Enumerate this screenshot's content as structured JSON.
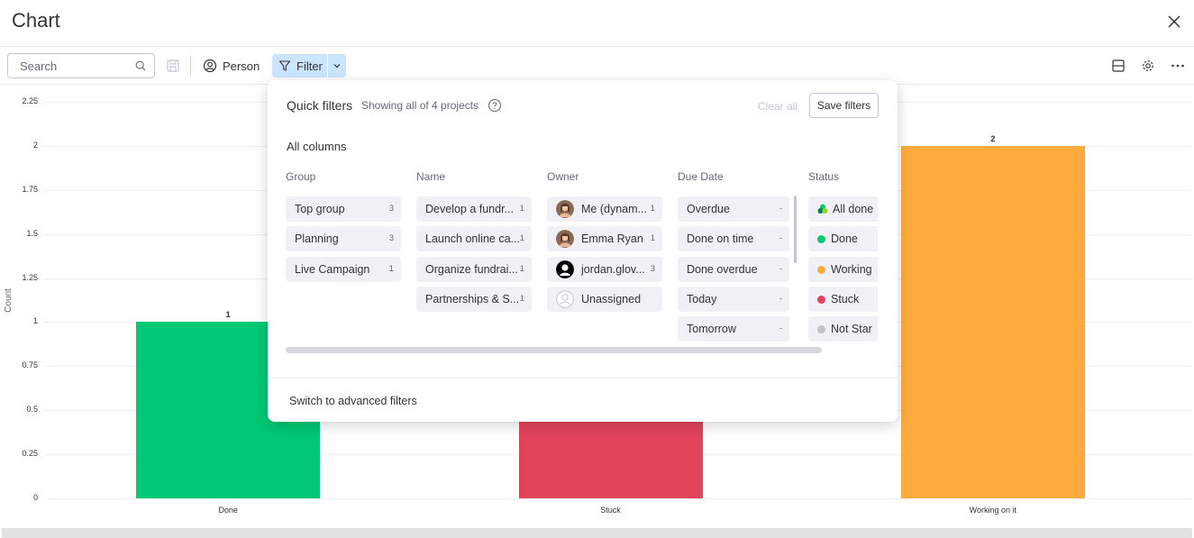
{
  "header": {
    "title": "Chart"
  },
  "toolbar": {
    "search_placeholder": "Search",
    "person_label": "Person",
    "filter_label": "Filter"
  },
  "chart_data": {
    "type": "bar",
    "categories": [
      "Done",
      "Stuck",
      "Working on it"
    ],
    "values": [
      1,
      1,
      2
    ],
    "colors": [
      "#00c875",
      "#e2445c",
      "#fdab3d"
    ],
    "value_labels": [
      "1",
      "1",
      "2"
    ],
    "ylabel": "Count",
    "ylim": [
      0,
      2.25
    ],
    "yticks": [
      "0",
      "0.25",
      "0.5",
      "0.75",
      "1",
      "1.25",
      "1.5",
      "1.75",
      "2",
      "2.25"
    ],
    "grid": true
  },
  "popup": {
    "title": "Quick filters",
    "subtitle": "Showing all of 4 projects",
    "clear_all": "Clear all",
    "save_filters": "Save filters",
    "all_columns": "All columns",
    "advanced_link": "Switch to advanced filters",
    "columns": {
      "group": {
        "header": "Group",
        "items": [
          {
            "label": "Top group",
            "count": "3"
          },
          {
            "label": "Planning",
            "count": "3"
          },
          {
            "label": "Live Campaign",
            "count": "1"
          }
        ]
      },
      "name": {
        "header": "Name",
        "items": [
          {
            "label": "Develop a fundr...",
            "count": "1"
          },
          {
            "label": "Launch online ca...",
            "count": "1"
          },
          {
            "label": "Organize fundrai...",
            "count": "1"
          },
          {
            "label": "Partnerships & S...",
            "count": "1"
          }
        ]
      },
      "owner": {
        "header": "Owner",
        "items": [
          {
            "label": "Me (dynam...",
            "count": "1",
            "icon": "avatar-photo"
          },
          {
            "label": "Emma Ryan",
            "count": "1",
            "icon": "avatar-photo"
          },
          {
            "label": "jordan.glov...",
            "count": "3",
            "icon": "avatar-default"
          },
          {
            "label": "Unassigned",
            "count": "",
            "icon": "avatar-unassigned"
          }
        ]
      },
      "due_date": {
        "header": "Due Date",
        "items": [
          {
            "label": "Overdue",
            "count": "-"
          },
          {
            "label": "Done on time",
            "count": "-"
          },
          {
            "label": "Done overdue",
            "count": "-"
          },
          {
            "label": "Today",
            "count": "-"
          },
          {
            "label": "Tomorrow",
            "count": "-"
          }
        ]
      },
      "status": {
        "header": "Status",
        "items": [
          {
            "label": "All done",
            "color": "multi"
          },
          {
            "label": "Done",
            "color": "#00c875"
          },
          {
            "label": "Working",
            "color": "#fdab3d"
          },
          {
            "label": "Stuck",
            "color": "#e2445c"
          },
          {
            "label": "Not Star",
            "color": "#c4c4c4"
          }
        ]
      }
    }
  }
}
